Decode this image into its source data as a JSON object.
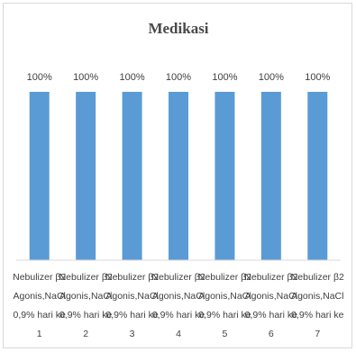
{
  "chart_data": {
    "type": "bar",
    "title": "Medikasi",
    "categories": [
      [
        "Nebulizer β2",
        "Agonis,NaCl",
        "0,9% hari ke",
        "1"
      ],
      [
        "Nebulizer β2",
        "Agonis,NaCl",
        "0,9% hari ke",
        "2"
      ],
      [
        "Nebulizer β2",
        "Agonis,NaCl",
        "0,9% hari ke",
        "3"
      ],
      [
        "Nebulizer β2",
        "Agonis,NaCl",
        "0,9% hari ke",
        "4"
      ],
      [
        "Nebulizer β2",
        "Agonis,NaCl",
        "0,9% hari ke",
        "5"
      ],
      [
        "Nebulizer β2",
        "Agonis,NaCl",
        "0,9% hari ke",
        "6"
      ],
      [
        "Nebulizer β2",
        "Agonis,NaCl",
        "0,9% hari ke",
        "7"
      ]
    ],
    "values": [
      100,
      100,
      100,
      100,
      100,
      100,
      100
    ],
    "data_labels": [
      "100%",
      "100%",
      "100%",
      "100%",
      "100%",
      "100%",
      "100%"
    ],
    "ylim": [
      0,
      100
    ],
    "grid": false,
    "legend": "none",
    "bar_color": "#5b9bd5",
    "axis_color": "#d9d9d9"
  }
}
